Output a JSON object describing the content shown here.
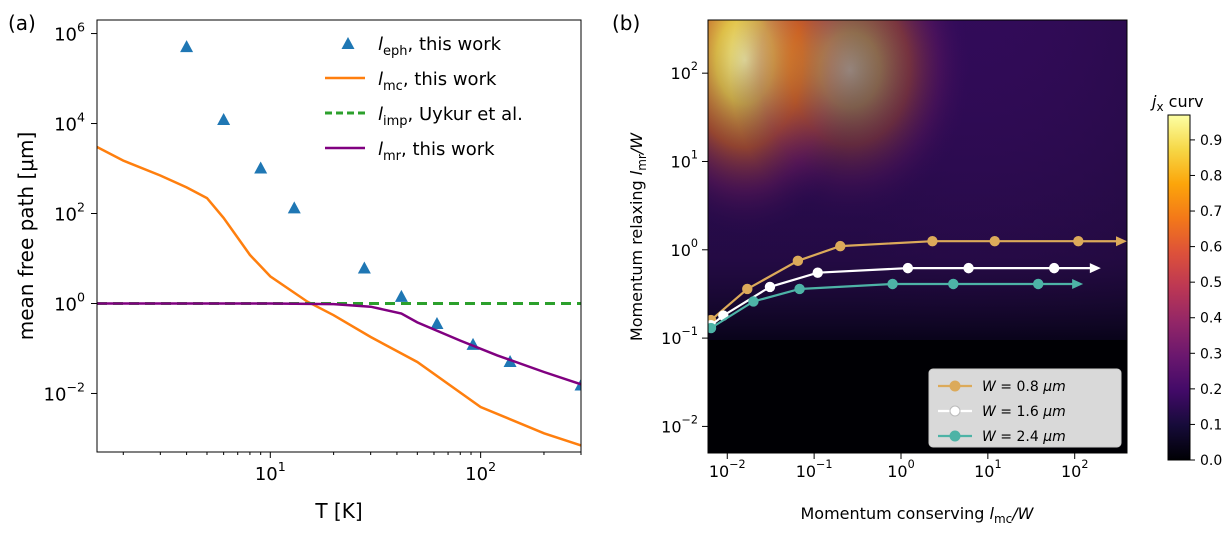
{
  "figure": {
    "panel_a_label": "(a)",
    "panel_b_label": "(b)"
  },
  "chart_data": [
    {
      "type": "line",
      "panel": "(a)",
      "xlabel": "T [K]",
      "ylabel": "mean free path [μm]",
      "xscale": "log",
      "yscale": "log",
      "xlim": [
        1.5,
        300
      ],
      "ylim": [
        0.0005,
        2000000
      ],
      "x_ticks": [
        {
          "v": 10,
          "base": "10",
          "exp": "1"
        },
        {
          "v": 100,
          "base": "10",
          "exp": "2"
        }
      ],
      "y_ticks": [
        {
          "v": 1000000,
          "base": "10",
          "exp": "6"
        },
        {
          "v": 10000,
          "base": "10",
          "exp": "4"
        },
        {
          "v": 100,
          "base": "10",
          "exp": "2"
        },
        {
          "v": 1,
          "base": "10",
          "exp": "0"
        },
        {
          "v": 0.01,
          "base": "10",
          "exp": "−2"
        }
      ],
      "grid": false,
      "legend_position": "top-right",
      "series": [
        {
          "name": "l_eph, this work",
          "sub": "eph",
          "text": ", this work",
          "style": "scatter",
          "color": "#1f77b4",
          "points": [
            [
              4,
              500000
            ],
            [
              6,
              12000
            ],
            [
              9,
              1000
            ],
            [
              13,
              130
            ],
            [
              28,
              6
            ],
            [
              42,
              1.4
            ],
            [
              62,
              0.35
            ],
            [
              92,
              0.12
            ],
            [
              138,
              0.05
            ],
            [
              300,
              0.015
            ]
          ]
        },
        {
          "name": "l_mc, this work",
          "sub": "mc",
          "text": ", this work",
          "style": "solid",
          "color": "#ff7f0e",
          "points": [
            [
              1.5,
              3000
            ],
            [
              2,
              1500
            ],
            [
              3,
              700
            ],
            [
              4,
              380
            ],
            [
              5,
              220
            ],
            [
              6,
              80
            ],
            [
              8,
              12
            ],
            [
              10,
              4
            ],
            [
              15,
              1.1
            ],
            [
              20,
              0.55
            ],
            [
              30,
              0.18
            ],
            [
              50,
              0.05
            ],
            [
              100,
              0.005
            ],
            [
              200,
              0.0013
            ],
            [
              300,
              0.0007
            ]
          ]
        },
        {
          "name": "l_imp, Uykur et al.",
          "sub": "imp",
          "text": ", Uykur et al.",
          "style": "dashed",
          "color": "#2ca02c",
          "points": [
            [
              1.5,
              1
            ],
            [
              300,
              1
            ]
          ]
        },
        {
          "name": "l_mr, this work",
          "sub": "mr",
          "text": ", this work",
          "style": "solid",
          "color": "#800080",
          "points": [
            [
              1.5,
              1
            ],
            [
              10,
              1
            ],
            [
              20,
              0.97
            ],
            [
              30,
              0.85
            ],
            [
              42,
              0.6
            ],
            [
              50,
              0.38
            ],
            [
              80,
              0.15
            ],
            [
              120,
              0.07
            ],
            [
              200,
              0.03
            ],
            [
              300,
              0.016
            ]
          ]
        }
      ]
    },
    {
      "type": "heatmap",
      "panel": "(b)",
      "xlabel_pre": "Momentum conserving ",
      "xlabel_var": "l",
      "xlabel_sub": "mc",
      "xlabel_post": "/W",
      "ylabel_pre": "Momentum relaxing ",
      "ylabel_var": "l",
      "ylabel_sub": "mr",
      "ylabel_post": "/W",
      "xscale": "log",
      "yscale": "log",
      "xlim": [
        0.006,
        400
      ],
      "ylim": [
        0.005,
        400
      ],
      "x_ticks": [
        {
          "v": 0.01,
          "base": "10",
          "exp": "−2"
        },
        {
          "v": 0.1,
          "base": "10",
          "exp": "−1"
        },
        {
          "v": 1,
          "base": "10",
          "exp": "0"
        },
        {
          "v": 10,
          "base": "10",
          "exp": "1"
        },
        {
          "v": 100,
          "base": "10",
          "exp": "2"
        }
      ],
      "y_ticks": [
        {
          "v": 0.01,
          "base": "10",
          "exp": "−2"
        },
        {
          "v": 0.1,
          "base": "10",
          "exp": "−1"
        },
        {
          "v": 1,
          "base": "10",
          "exp": "0"
        },
        {
          "v": 10,
          "base": "10",
          "exp": "1"
        },
        {
          "v": 100,
          "base": "10",
          "exp": "2"
        }
      ],
      "colormap": "inferno",
      "colorbar": {
        "title_var": "j",
        "title_sub": "x",
        "title_text": " curv",
        "min": 0.0,
        "max": 0.97,
        "ticks": [
          "0.0",
          "0.1",
          "0.2",
          "0.3",
          "0.4",
          "0.5",
          "0.6",
          "0.7",
          "0.8",
          "0.9"
        ]
      },
      "legend_position": "bottom-right",
      "series": [
        {
          "name": "W = 0.8 μm",
          "w": "0.8",
          "color": "#dcaa5a",
          "points": [
            [
              0.0065,
              0.16
            ],
            [
              0.017,
              0.36
            ],
            [
              0.065,
              0.75
            ],
            [
              0.2,
              1.1
            ],
            [
              2.3,
              1.25
            ],
            [
              12,
              1.25
            ],
            [
              110,
              1.25
            ]
          ],
          "arrow_to": 400
        },
        {
          "name": "W = 1.6 μm",
          "w": "1.6",
          "color": "#ffffff",
          "points": [
            [
              0.0065,
              0.14
            ],
            [
              0.009,
              0.18
            ],
            [
              0.031,
              0.38
            ],
            [
              0.11,
              0.55
            ],
            [
              1.2,
              0.62
            ],
            [
              6,
              0.62
            ],
            [
              58,
              0.62
            ]
          ],
          "arrow_to": 200
        },
        {
          "name": "W = 2.4 μm",
          "w": "2.4",
          "color": "#4db3a6",
          "points": [
            [
              0.0065,
              0.13
            ],
            [
              0.02,
              0.26
            ],
            [
              0.068,
              0.36
            ],
            [
              0.8,
              0.41
            ],
            [
              4,
              0.41
            ],
            [
              38,
              0.41
            ]
          ],
          "arrow_to": 125
        }
      ]
    }
  ]
}
